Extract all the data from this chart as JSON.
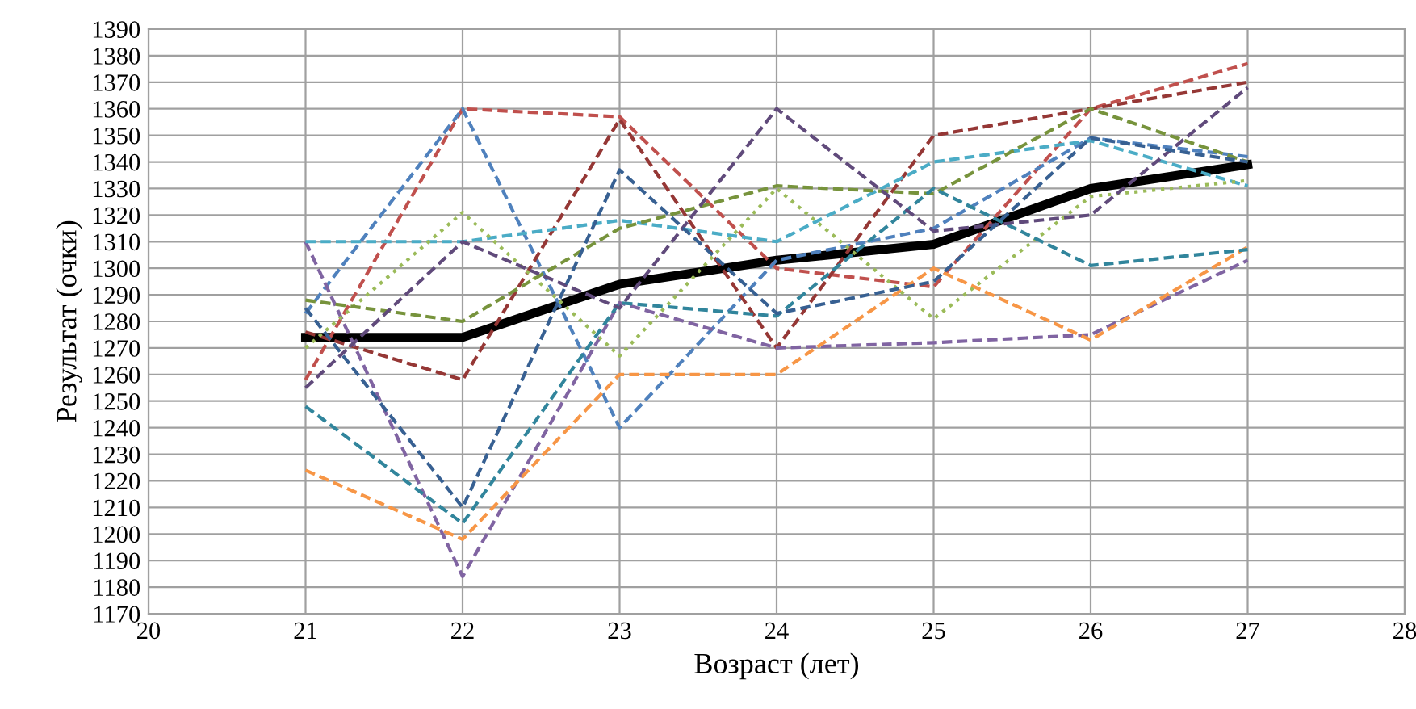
{
  "chart_data": {
    "type": "line",
    "xlabel": "Возраст (лет)",
    "ylabel": "Результат (очки)",
    "x": [
      21,
      22,
      23,
      24,
      25,
      26,
      27
    ],
    "xlim": [
      20,
      28
    ],
    "xticks": [
      20,
      21,
      22,
      23,
      24,
      25,
      26,
      27,
      28
    ],
    "ylim": [
      1170,
      1390
    ],
    "yticks": [
      1170,
      1180,
      1190,
      1200,
      1210,
      1220,
      1230,
      1240,
      1250,
      1260,
      1270,
      1280,
      1290,
      1300,
      1310,
      1320,
      1330,
      1340,
      1350,
      1360,
      1370,
      1380,
      1390
    ],
    "grid": true,
    "legend": false,
    "marker": "none",
    "series": [
      {
        "color": "#c0504d",
        "line_style": "dashed",
        "values": [
          1258,
          1360,
          1357,
          1300,
          1293,
          1360,
          1377
        ]
      },
      {
        "color": "#4f81bd",
        "line_style": "dashed",
        "values": [
          1283,
          1360,
          1240,
          1303,
          1315,
          1349,
          1342
        ]
      },
      {
        "color": "#953735",
        "line_style": "dashed",
        "values": [
          1276,
          1258,
          1356,
          1270,
          1350,
          1360,
          1370
        ]
      },
      {
        "color": "#8064a2",
        "line_style": "dashed",
        "values": [
          1310,
          1184,
          1287,
          1270,
          1272,
          1275,
          1303
        ]
      },
      {
        "color": "#f79646",
        "line_style": "dashed",
        "values": [
          1224,
          1198,
          1260,
          1260,
          1300,
          1273,
          1308
        ]
      },
      {
        "color": "#4bacc6",
        "line_style": "dashed",
        "values": [
          1310,
          1310,
          1318,
          1310,
          1340,
          1348,
          1331
        ]
      },
      {
        "color": "#9bbb59",
        "line_style": "dotted",
        "values": [
          1270,
          1321,
          1267,
          1330,
          1281,
          1327,
          1333
        ]
      },
      {
        "color": "#77933c",
        "line_style": "dashed",
        "values": [
          1288,
          1280,
          1315,
          1331,
          1328,
          1360,
          1340
        ]
      },
      {
        "color": "#31859c",
        "line_style": "dashed",
        "values": [
          1248,
          1204,
          1287,
          1282,
          1330,
          1301,
          1307
        ]
      },
      {
        "color": "#604a7b",
        "line_style": "dashed",
        "values": [
          1255,
          1310,
          1285,
          1360,
          1314,
          1320,
          1368
        ]
      },
      {
        "color": "#376092",
        "line_style": "dashed",
        "values": [
          1285,
          1210,
          1337,
          1283,
          1295,
          1349,
          1340
        ]
      },
      {
        "color": "#000000",
        "line_style": "solid",
        "values": [
          1274,
          1274,
          1294,
          1303,
          1309,
          1330,
          1339
        ]
      }
    ]
  }
}
